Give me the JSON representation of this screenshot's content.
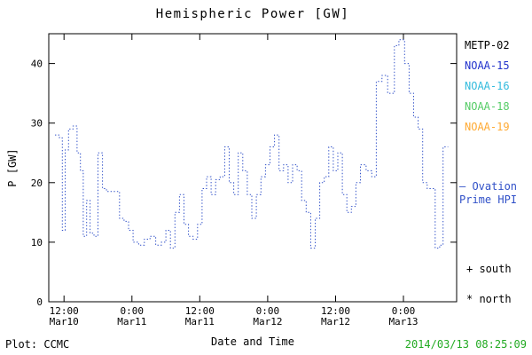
{
  "title": "Hemispheric Power [GW]",
  "ylabel": "P [GW]",
  "xlabel": "Date and Time",
  "footer": {
    "left": "Plot: CCMC",
    "right": "2014/03/13 08:25:09"
  },
  "annotation": {
    "line1": "– Ovation",
    "line2": "Prime HPI"
  },
  "markers": {
    "south": "+ south",
    "north": "* north"
  },
  "colors": {
    "line": "#3050c8",
    "annotation": "#3050c8",
    "timestamp": "#22aa22",
    "axis": "#000000"
  },
  "legend": [
    {
      "label": "METP-02",
      "color": "#000000"
    },
    {
      "label": "NOAA-15",
      "color": "#2233cc"
    },
    {
      "label": "NOAA-16",
      "color": "#33bbdd"
    },
    {
      "label": "NOAA-18",
      "color": "#55cc66"
    },
    {
      "label": "NOAA-19",
      "color": "#ffaa33"
    }
  ],
  "chart_data": {
    "type": "line",
    "subtype": "step-dotted",
    "title": "Hemispheric Power [GW]",
    "xlabel": "Date and Time",
    "ylabel": "P [GW]",
    "ylim": [
      0,
      45
    ],
    "y_ticks": [
      0,
      10,
      20,
      30,
      40
    ],
    "x_unit": "hours from Mar10 00:00",
    "x_range_hours": [
      9.3,
      81.4
    ],
    "x_ticks": [
      {
        "hour": 12,
        "time": "12:00",
        "date": "Mar10"
      },
      {
        "hour": 24,
        "time": "0:00",
        "date": "Mar11"
      },
      {
        "hour": 36,
        "time": "12:00",
        "date": "Mar11"
      },
      {
        "hour": 48,
        "time": "0:00",
        "date": "Mar12"
      },
      {
        "hour": 60,
        "time": "12:00",
        "date": "Mar12"
      },
      {
        "hour": 72,
        "time": "0:00",
        "date": "Mar13"
      }
    ],
    "grid": false,
    "legend_position": "right-outside",
    "series": [
      {
        "name": "Ovation Prime HPI",
        "units": "GW",
        "points": [
          [
            10.4,
            28
          ],
          [
            11.2,
            27.5
          ],
          [
            11.7,
            12
          ],
          [
            12.2,
            25.5
          ],
          [
            12.8,
            29
          ],
          [
            13.6,
            29.5
          ],
          [
            14.3,
            25
          ],
          [
            14.9,
            22
          ],
          [
            15.4,
            11
          ],
          [
            16.0,
            17
          ],
          [
            16.6,
            11.5
          ],
          [
            17.3,
            11
          ],
          [
            18.0,
            25
          ],
          [
            18.8,
            19
          ],
          [
            19.5,
            18.5
          ],
          [
            21.0,
            18.5
          ],
          [
            21.8,
            14
          ],
          [
            22.6,
            13.5
          ],
          [
            23.4,
            12
          ],
          [
            24.2,
            10
          ],
          [
            25.2,
            9.5
          ],
          [
            26.2,
            10.5
          ],
          [
            27.2,
            11
          ],
          [
            28.2,
            9.5
          ],
          [
            29.2,
            10
          ],
          [
            30.0,
            12
          ],
          [
            30.8,
            9
          ],
          [
            31.6,
            15
          ],
          [
            32.4,
            18
          ],
          [
            33.2,
            13
          ],
          [
            34.0,
            11
          ],
          [
            34.8,
            10.5
          ],
          [
            35.6,
            13
          ],
          [
            36.4,
            19
          ],
          [
            37.2,
            21
          ],
          [
            38.0,
            18
          ],
          [
            38.8,
            20.5
          ],
          [
            39.6,
            21
          ],
          [
            40.4,
            26
          ],
          [
            41.2,
            20
          ],
          [
            42.0,
            18
          ],
          [
            42.8,
            25
          ],
          [
            43.6,
            22
          ],
          [
            44.4,
            18
          ],
          [
            45.2,
            14
          ],
          [
            46.0,
            18
          ],
          [
            46.8,
            21
          ],
          [
            47.6,
            23
          ],
          [
            48.4,
            26
          ],
          [
            49.2,
            28
          ],
          [
            50.0,
            22
          ],
          [
            50.8,
            23
          ],
          [
            51.6,
            20
          ],
          [
            52.4,
            23
          ],
          [
            53.2,
            22
          ],
          [
            54.0,
            17
          ],
          [
            54.8,
            15
          ],
          [
            55.6,
            9
          ],
          [
            56.4,
            14
          ],
          [
            57.2,
            20
          ],
          [
            58.0,
            21
          ],
          [
            58.8,
            26
          ],
          [
            59.6,
            22
          ],
          [
            60.4,
            25
          ],
          [
            61.2,
            18
          ],
          [
            62.0,
            15
          ],
          [
            62.8,
            16
          ],
          [
            63.6,
            20
          ],
          [
            64.4,
            23
          ],
          [
            65.4,
            22
          ],
          [
            66.4,
            21
          ],
          [
            67.2,
            37
          ],
          [
            68.2,
            38
          ],
          [
            69.2,
            35
          ],
          [
            70.4,
            43
          ],
          [
            71.2,
            44
          ],
          [
            72.2,
            40
          ],
          [
            73.0,
            35
          ],
          [
            73.8,
            31
          ],
          [
            74.6,
            29
          ],
          [
            75.4,
            20
          ],
          [
            76.2,
            19
          ],
          [
            77.6,
            9
          ],
          [
            78.4,
            9.5
          ],
          [
            79.0,
            26
          ],
          [
            79.9,
            26
          ]
        ]
      }
    ]
  }
}
